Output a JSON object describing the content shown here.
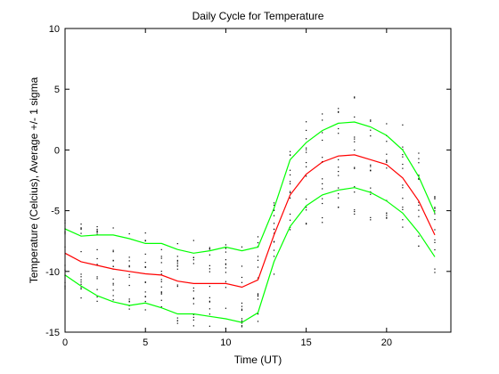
{
  "chart_data": {
    "type": "line",
    "title": "Daily Cycle for Temperature",
    "xlabel": "Time (UT)",
    "ylabel": "Temperature (Celcius), Average +/- 1 sigma",
    "xlim": [
      0,
      24
    ],
    "ylim": [
      -15,
      10
    ],
    "xticks": [
      0,
      5,
      10,
      15,
      20
    ],
    "yticks": [
      -15,
      -10,
      -5,
      0,
      5,
      10
    ],
    "grid": false,
    "colors": {
      "mean": "#ff0000",
      "sigma": "#00ff00",
      "points": "#000000"
    },
    "x": [
      0,
      1,
      2,
      3,
      4,
      5,
      6,
      7,
      8,
      9,
      10,
      11,
      12,
      13,
      14,
      15,
      16,
      17,
      18,
      19,
      20,
      21,
      22,
      23
    ],
    "series": [
      {
        "role": "mean",
        "values": [
          -8.5,
          -9.2,
          -9.5,
          -9.8,
          -10.0,
          -10.2,
          -10.3,
          -10.8,
          -11.0,
          -11.0,
          -11.0,
          -11.3,
          -10.7,
          -7.0,
          -3.7,
          -2.0,
          -1.0,
          -0.5,
          -0.4,
          -0.8,
          -1.2,
          -2.3,
          -4.2,
          -7.0
        ]
      },
      {
        "role": "upper",
        "values": [
          -6.5,
          -7.1,
          -7.0,
          -7.0,
          -7.3,
          -7.7,
          -7.7,
          -8.2,
          -8.5,
          -8.3,
          -8.0,
          -8.3,
          -8.0,
          -4.8,
          -0.8,
          0.6,
          1.6,
          2.2,
          2.3,
          1.9,
          1.2,
          0.0,
          -2.2,
          -5.2
        ]
      },
      {
        "role": "lower",
        "values": [
          -10.3,
          -11.2,
          -12.0,
          -12.5,
          -12.8,
          -12.6,
          -13.0,
          -13.5,
          -13.5,
          -13.7,
          -13.9,
          -14.2,
          -13.4,
          -9.2,
          -6.3,
          -4.6,
          -3.7,
          -3.3,
          -3.1,
          -3.5,
          -4.2,
          -5.2,
          -6.8,
          -8.8
        ]
      }
    ],
    "scatter_spread": [
      3.0,
      3.2,
      3.3,
      3.4,
      3.5,
      3.5,
      3.6,
      3.6,
      3.7,
      3.7,
      3.7,
      3.8,
      3.6,
      3.4,
      4.2,
      4.6,
      5.0,
      5.2,
      5.2,
      5.0,
      4.8,
      4.5,
      4.0,
      3.6
    ]
  }
}
